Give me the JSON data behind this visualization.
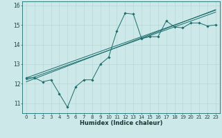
{
  "xlabel": "Humidex (Indice chaleur)",
  "bg_color": "#cce8e8",
  "grid_color": "#b8d8d8",
  "line_color": "#1a6b6b",
  "x_data": [
    0,
    1,
    2,
    3,
    4,
    5,
    6,
    7,
    8,
    9,
    10,
    11,
    12,
    13,
    14,
    15,
    16,
    17,
    18,
    19,
    20,
    21,
    22,
    23
  ],
  "y_main": [
    12.3,
    12.3,
    12.1,
    12.2,
    11.5,
    10.8,
    11.85,
    12.2,
    12.2,
    13.0,
    13.35,
    14.7,
    15.6,
    15.55,
    14.3,
    14.4,
    14.4,
    15.2,
    14.9,
    14.85,
    15.1,
    15.1,
    14.95,
    15.0
  ],
  "reg_lines": [
    [
      12.3,
      12.45,
      12.6,
      12.75,
      12.9,
      13.05,
      13.2,
      13.35,
      13.5,
      13.65,
      13.8,
      13.95,
      14.1,
      14.25,
      14.4,
      14.55,
      14.7,
      14.85,
      15.0,
      15.15,
      15.3,
      15.45,
      15.6,
      15.75
    ],
    [
      12.1,
      12.26,
      12.42,
      12.58,
      12.74,
      12.9,
      13.06,
      13.22,
      13.38,
      13.54,
      13.7,
      13.86,
      14.02,
      14.18,
      14.34,
      14.5,
      14.66,
      14.82,
      14.98,
      15.14,
      15.3,
      15.46,
      15.62,
      15.78
    ],
    [
      12.2,
      12.35,
      12.5,
      12.65,
      12.8,
      12.95,
      13.1,
      13.25,
      13.4,
      13.55,
      13.7,
      13.85,
      14.0,
      14.15,
      14.3,
      14.45,
      14.6,
      14.75,
      14.9,
      15.05,
      15.2,
      15.35,
      15.5,
      15.65
    ]
  ],
  "ylim": [
    10.5,
    16.2
  ],
  "yticks": [
    11,
    12,
    13,
    14,
    15,
    16
  ],
  "xticks": [
    0,
    1,
    2,
    3,
    4,
    5,
    6,
    7,
    8,
    9,
    10,
    11,
    12,
    13,
    14,
    15,
    16,
    17,
    18,
    19,
    20,
    21,
    22,
    23
  ],
  "tick_fontsize": 5.0,
  "xlabel_fontsize": 6.0,
  "figsize": [
    3.2,
    2.0
  ],
  "dpi": 100
}
